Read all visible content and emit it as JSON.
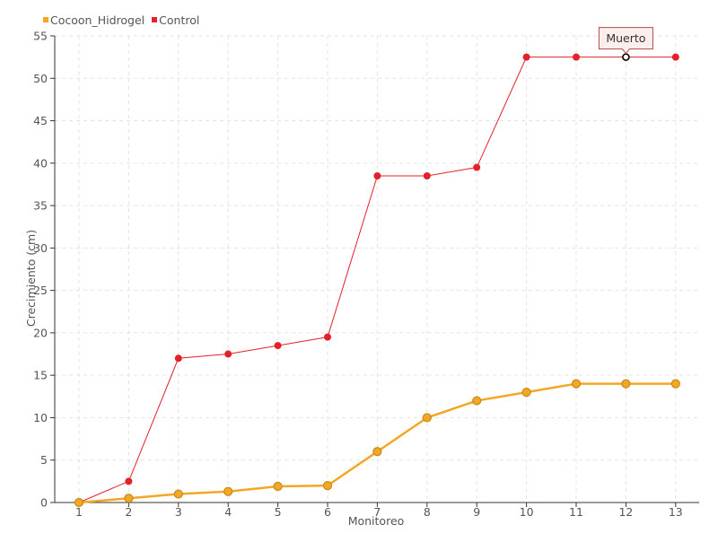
{
  "chart_data": {
    "type": "line",
    "title": "",
    "xlabel": "Monitoreo",
    "ylabel": "Crecimiento (cm)",
    "categories": [
      "1",
      "2",
      "3",
      "4",
      "5",
      "6",
      "7",
      "8",
      "9",
      "10",
      "11",
      "12",
      "13"
    ],
    "ylim": [
      0,
      55
    ],
    "yticks": [
      "0",
      "5",
      "10",
      "15",
      "20",
      "25",
      "30",
      "35",
      "40",
      "45",
      "50",
      "55"
    ],
    "grid": true,
    "legend_position": "top-left",
    "series": [
      {
        "name": "Cocoon_Hidrogel",
        "color": "#f5a623",
        "values": [
          0,
          0.5,
          1,
          1.3,
          1.9,
          2,
          6,
          10,
          12,
          13,
          14,
          14,
          14
        ]
      },
      {
        "name": "Control",
        "color": "#e3212b",
        "values": [
          0,
          2.5,
          17,
          17.5,
          18.5,
          19.5,
          38.5,
          38.5,
          39.5,
          52.5,
          52.5,
          52.5,
          52.5
        ]
      }
    ],
    "annotations": [
      {
        "text": "Muerto",
        "series": "Control",
        "category": "12",
        "value": 52.5
      }
    ]
  }
}
